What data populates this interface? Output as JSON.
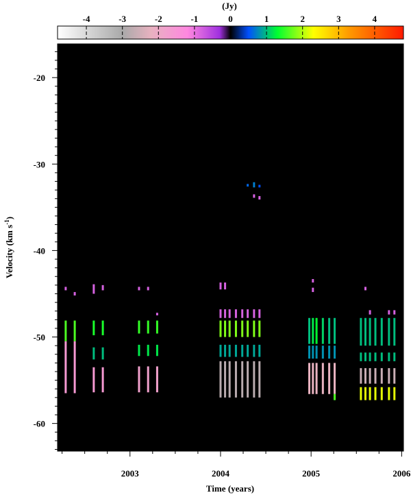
{
  "chart_data": {
    "type": "heatmap",
    "title": "",
    "xlabel": "Time (years)",
    "ylabel": "Velocity (km s",
    "ylabel_superscript": "-1",
    "ylabel_close": ")",
    "xlim": [
      2002.2,
      2006.02
    ],
    "ylim": [
      -63.2,
      -16.1
    ],
    "x_ticks": [
      2003,
      2004,
      2005,
      2006
    ],
    "x_tick_labels": [
      "2003",
      "2004",
      "2005",
      "2006"
    ],
    "y_ticks": [
      -20,
      -30,
      -40,
      -50,
      -60
    ],
    "y_tick_labels": [
      "-20",
      "-30",
      "-40",
      "-50",
      "-60"
    ],
    "colorbar": {
      "label": "(Jy)",
      "range": [
        -4.8,
        4.8
      ],
      "ticks": [
        -4,
        -3,
        -2,
        -1,
        0,
        1,
        2,
        3,
        4
      ],
      "tick_labels": [
        "-4",
        "-3",
        "-2",
        "-1",
        "0",
        "1",
        "2",
        "3",
        "4"
      ],
      "stops": [
        {
          "value": -4.8,
          "color": "#ffffff"
        },
        {
          "value": -3.0,
          "color": "#a9a9a9"
        },
        {
          "value": -2.2,
          "color": "#e8b2c0"
        },
        {
          "value": -1.2,
          "color": "#ff88e0"
        },
        {
          "value": -0.3,
          "color": "#a030e0"
        },
        {
          "value": 0.0,
          "color": "#000000"
        },
        {
          "value": 0.5,
          "color": "#0050ff"
        },
        {
          "value": 1.3,
          "color": "#00ff30"
        },
        {
          "value": 2.3,
          "color": "#ffff00"
        },
        {
          "value": 3.3,
          "color": "#ff9900"
        },
        {
          "value": 4.8,
          "color": "#ff1a00"
        }
      ]
    },
    "background_value": 0,
    "epochs": [
      {
        "t": 2002.29,
        "features": [
          {
            "v": [
              -44.2,
              -44.6
            ],
            "flux": -0.8
          },
          {
            "v": [
              -48.1,
              -50.5
            ],
            "flux": 1.6
          },
          {
            "v": [
              -50.5,
              -56.5
            ],
            "flux": -1.6
          }
        ]
      },
      {
        "t": 2002.39,
        "features": [
          {
            "v": [
              -44.8,
              -45.2
            ],
            "flux": -0.8
          },
          {
            "v": [
              -48.1,
              -50.5
            ],
            "flux": 1.6
          },
          {
            "v": [
              -50.5,
              -56.5
            ],
            "flux": -1.6
          }
        ]
      },
      {
        "t": 2002.6,
        "features": [
          {
            "v": [
              -43.9,
              -45.0
            ],
            "flux": -0.8
          },
          {
            "v": [
              -48.1,
              -49.8
            ],
            "flux": 1.4
          },
          {
            "v": [
              -51.2,
              -52.6
            ],
            "flux": 1.0
          },
          {
            "v": [
              -53.5,
              -56.4
            ],
            "flux": -1.6
          }
        ]
      },
      {
        "t": 2002.7,
        "features": [
          {
            "v": [
              -44.0,
              -44.6
            ],
            "flux": -0.8
          },
          {
            "v": [
              -48.1,
              -49.8
            ],
            "flux": 1.4
          },
          {
            "v": [
              -51.2,
              -52.6
            ],
            "flux": 1.0
          },
          {
            "v": [
              -53.5,
              -56.4
            ],
            "flux": -1.6
          }
        ]
      },
      {
        "t": 2003.1,
        "features": [
          {
            "v": [
              -44.2,
              -44.6
            ],
            "flux": -0.8
          },
          {
            "v": [
              -48.1,
              -49.6
            ],
            "flux": 1.5
          },
          {
            "v": [
              -50.9,
              -52.2
            ],
            "flux": 1.2
          },
          {
            "v": [
              -53.4,
              -56.4
            ],
            "flux": -1.8
          }
        ]
      },
      {
        "t": 2003.2,
        "features": [
          {
            "v": [
              -44.2,
              -44.6
            ],
            "flux": -0.8
          },
          {
            "v": [
              -48.1,
              -49.6
            ],
            "flux": 1.5
          },
          {
            "v": [
              -50.9,
              -52.2
            ],
            "flux": 1.2
          },
          {
            "v": [
              -53.4,
              -56.4
            ],
            "flux": -1.8
          }
        ]
      },
      {
        "t": 2003.3,
        "features": [
          {
            "v": [
              -47.2,
              -47.5
            ],
            "flux": -0.8
          },
          {
            "v": [
              -48.1,
              -49.6
            ],
            "flux": 1.5
          },
          {
            "v": [
              -50.9,
              -52.2
            ],
            "flux": 1.2
          },
          {
            "v": [
              -53.4,
              -56.4
            ],
            "flux": -1.8
          }
        ]
      },
      {
        "t": 2004.0,
        "features": [
          {
            "v": [
              -43.7,
              -44.5
            ],
            "flux": -0.8
          },
          {
            "v": [
              -46.8,
              -47.8
            ],
            "flux": -0.8
          },
          {
            "v": [
              -48.1,
              -50.0
            ],
            "flux": 1.8
          },
          {
            "v": [
              -50.9,
              -52.3
            ],
            "flux": 0.9
          },
          {
            "v": [
              -52.8,
              -57.0
            ],
            "flux": -2.8
          }
        ]
      },
      {
        "t": 2004.05,
        "features": [
          {
            "v": [
              -43.7,
              -44.5
            ],
            "flux": -0.8
          },
          {
            "v": [
              -46.8,
              -47.8
            ],
            "flux": -0.8
          },
          {
            "v": [
              -48.1,
              -50.0
            ],
            "flux": 1.8
          },
          {
            "v": [
              -50.9,
              -52.3
            ],
            "flux": 0.9
          },
          {
            "v": [
              -52.8,
              -57.0
            ],
            "flux": -2.8
          }
        ]
      },
      {
        "t": 2004.1,
        "features": [
          {
            "v": [
              -46.8,
              -47.8
            ],
            "flux": -0.8
          },
          {
            "v": [
              -48.1,
              -50.0
            ],
            "flux": 1.8
          },
          {
            "v": [
              -50.9,
              -52.3
            ],
            "flux": 0.9
          },
          {
            "v": [
              -52.8,
              -57.0
            ],
            "flux": -2.8
          }
        ]
      },
      {
        "t": 2004.17,
        "features": [
          {
            "v": [
              -46.8,
              -47.8
            ],
            "flux": -0.8
          },
          {
            "v": [
              -48.1,
              -50.0
            ],
            "flux": 1.8
          },
          {
            "v": [
              -50.9,
              -52.3
            ],
            "flux": 0.9
          },
          {
            "v": [
              -52.8,
              -57.0
            ],
            "flux": -2.8
          }
        ]
      },
      {
        "t": 2004.24,
        "features": [
          {
            "v": [
              -46.8,
              -47.8
            ],
            "flux": -0.8
          },
          {
            "v": [
              -48.1,
              -50.0
            ],
            "flux": 1.8
          },
          {
            "v": [
              -50.9,
              -52.3
            ],
            "flux": 0.9
          },
          {
            "v": [
              -52.8,
              -57.0
            ],
            "flux": -2.8
          }
        ]
      },
      {
        "t": 2004.3,
        "features": [
          {
            "v": [
              -32.3,
              -32.6
            ],
            "flux": 0.6
          },
          {
            "v": [
              -46.8,
              -47.8
            ],
            "flux": -0.8
          },
          {
            "v": [
              -48.1,
              -50.0
            ],
            "flux": 1.8
          },
          {
            "v": [
              -50.9,
              -52.3
            ],
            "flux": 0.9
          },
          {
            "v": [
              -52.8,
              -57.0
            ],
            "flux": -2.8
          }
        ]
      },
      {
        "t": 2004.37,
        "features": [
          {
            "v": [
              -32.1,
              -32.7
            ],
            "flux": 0.7
          },
          {
            "v": [
              -33.5,
              -33.9
            ],
            "flux": -0.8
          },
          {
            "v": [
              -46.8,
              -47.8
            ],
            "flux": -0.8
          },
          {
            "v": [
              -48.1,
              -50.0
            ],
            "flux": 1.8
          },
          {
            "v": [
              -50.9,
              -52.3
            ],
            "flux": 0.9
          },
          {
            "v": [
              -52.8,
              -57.0
            ],
            "flux": -2.8
          }
        ]
      },
      {
        "t": 2004.43,
        "features": [
          {
            "v": [
              -32.4,
              -32.7
            ],
            "flux": 0.5
          },
          {
            "v": [
              -33.7,
              -34.1
            ],
            "flux": -0.8
          },
          {
            "v": [
              -46.8,
              -47.8
            ],
            "flux": -0.8
          },
          {
            "v": [
              -48.1,
              -50.0
            ],
            "flux": 1.8
          },
          {
            "v": [
              -50.9,
              -52.3
            ],
            "flux": 0.9
          },
          {
            "v": [
              -52.8,
              -57.0
            ],
            "flux": -2.8
          }
        ]
      },
      {
        "t": 2004.98,
        "features": [
          {
            "v": [
              -47.8,
              -50.8
            ],
            "flux": 1.0
          },
          {
            "v": [
              -51.0,
              -52.5
            ],
            "flux": 0.8
          },
          {
            "v": [
              -53.0,
              -56.6
            ],
            "flux": -2.2
          }
        ]
      },
      {
        "t": 2005.02,
        "features": [
          {
            "v": [
              -43.3,
              -43.7
            ],
            "flux": -0.8
          },
          {
            "v": [
              -44.3,
              -44.8
            ],
            "flux": -0.8
          },
          {
            "v": [
              -47.8,
              -50.8
            ],
            "flux": 1.2
          },
          {
            "v": [
              -51.0,
              -52.5
            ],
            "flux": 0.8
          },
          {
            "v": [
              -53.0,
              -56.6
            ],
            "flux": -2.2
          }
        ]
      },
      {
        "t": 2005.06,
        "features": [
          {
            "v": [
              -47.8,
              -50.8
            ],
            "flux": 1.3
          },
          {
            "v": [
              -51.0,
              -52.5
            ],
            "flux": 0.8
          },
          {
            "v": [
              -53.0,
              -56.6
            ],
            "flux": -2.2
          }
        ]
      },
      {
        "t": 2005.13,
        "features": [
          {
            "v": [
              -47.8,
              -50.8
            ],
            "flux": 1.1
          },
          {
            "v": [
              -51.0,
              -52.5
            ],
            "flux": 0.8
          },
          {
            "v": [
              -53.0,
              -56.6
            ],
            "flux": -2.2
          }
        ]
      },
      {
        "t": 2005.2,
        "features": [
          {
            "v": [
              -47.8,
              -50.8
            ],
            "flux": 1.0
          },
          {
            "v": [
              -51.0,
              -52.5
            ],
            "flux": 0.8
          },
          {
            "v": [
              -53.0,
              -56.6
            ],
            "flux": -2.2
          }
        ]
      },
      {
        "t": 2005.26,
        "features": [
          {
            "v": [
              -47.8,
              -50.8
            ],
            "flux": 1.0
          },
          {
            "v": [
              -51.0,
              -52.5
            ],
            "flux": 0.8
          },
          {
            "v": [
              -53.0,
              -56.6
            ],
            "flux": -2.2
          },
          {
            "v": [
              -56.6,
              -57.3
            ],
            "flux": 1.6
          }
        ]
      },
      {
        "t": 2005.55,
        "features": [
          {
            "v": [
              -47.8,
              -51.0
            ],
            "flux": 1.0
          },
          {
            "v": [
              -51.8,
              -52.8
            ],
            "flux": 1.0
          },
          {
            "v": [
              -53.6,
              -55.4
            ],
            "flux": -2.6
          },
          {
            "v": [
              -55.8,
              -57.3
            ],
            "flux": 2.2
          }
        ]
      },
      {
        "t": 2005.6,
        "features": [
          {
            "v": [
              -44.2,
              -44.6
            ],
            "flux": -0.8
          },
          {
            "v": [
              -47.8,
              -51.0
            ],
            "flux": 1.0
          },
          {
            "v": [
              -51.8,
              -52.8
            ],
            "flux": 1.0
          },
          {
            "v": [
              -53.6,
              -55.4
            ],
            "flux": -2.6
          },
          {
            "v": [
              -55.8,
              -57.3
            ],
            "flux": 2.2
          }
        ]
      },
      {
        "t": 2005.65,
        "features": [
          {
            "v": [
              -46.9,
              -47.4
            ],
            "flux": -0.8
          },
          {
            "v": [
              -47.8,
              -51.0
            ],
            "flux": 1.0
          },
          {
            "v": [
              -51.8,
              -52.8
            ],
            "flux": 1.0
          },
          {
            "v": [
              -53.6,
              -55.4
            ],
            "flux": -2.6
          },
          {
            "v": [
              -55.8,
              -57.3
            ],
            "flux": 2.2
          }
        ]
      },
      {
        "t": 2005.71,
        "features": [
          {
            "v": [
              -47.8,
              -51.0
            ],
            "flux": 1.0
          },
          {
            "v": [
              -51.8,
              -52.8
            ],
            "flux": 1.0
          },
          {
            "v": [
              -53.6,
              -55.4
            ],
            "flux": -2.6
          },
          {
            "v": [
              -55.8,
              -57.3
            ],
            "flux": 2.2
          }
        ]
      },
      {
        "t": 2005.78,
        "features": [
          {
            "v": [
              -47.8,
              -51.0
            ],
            "flux": 1.0
          },
          {
            "v": [
              -51.8,
              -52.8
            ],
            "flux": 1.0
          },
          {
            "v": [
              -53.6,
              -55.4
            ],
            "flux": -2.6
          },
          {
            "v": [
              -55.8,
              -57.3
            ],
            "flux": 2.2
          }
        ]
      },
      {
        "t": 2005.86,
        "features": [
          {
            "v": [
              -46.9,
              -47.4
            ],
            "flux": -0.8
          },
          {
            "v": [
              -47.8,
              -51.0
            ],
            "flux": 1.0
          },
          {
            "v": [
              -51.8,
              -52.8
            ],
            "flux": 1.0
          },
          {
            "v": [
              -53.6,
              -55.4
            ],
            "flux": -2.6
          },
          {
            "v": [
              -55.8,
              -57.3
            ],
            "flux": 2.2
          }
        ]
      },
      {
        "t": 2005.92,
        "features": [
          {
            "v": [
              -46.9,
              -47.4
            ],
            "flux": -0.8
          },
          {
            "v": [
              -47.8,
              -51.0
            ],
            "flux": 1.0
          },
          {
            "v": [
              -51.8,
              -52.8
            ],
            "flux": 1.0
          },
          {
            "v": [
              -53.6,
              -55.4
            ],
            "flux": -2.6
          },
          {
            "v": [
              -55.8,
              -57.3
            ],
            "flux": 2.2
          }
        ]
      }
    ]
  }
}
